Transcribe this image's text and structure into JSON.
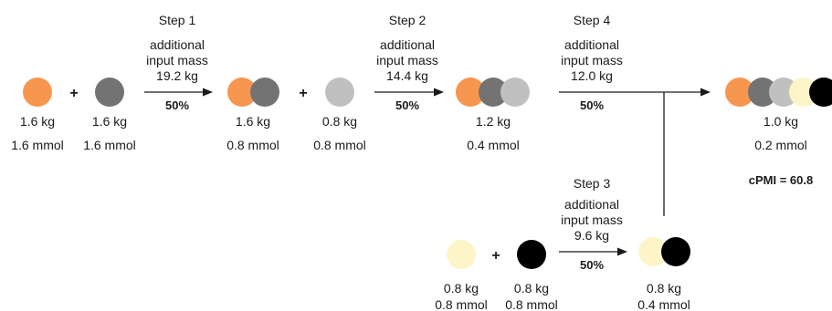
{
  "colors": {
    "orange": "#F7964F",
    "dark_gray": "#737373",
    "light_gray": "#C0C0C0",
    "cream": "#FDF4C8",
    "black": "#000000"
  },
  "reactants": {
    "a": {
      "mass": "1.6 kg",
      "amount": "1.6 mmol"
    },
    "b": {
      "mass": "1.6 kg",
      "amount": "1.6 mmol"
    },
    "c": {
      "mass": "0.8 kg",
      "amount": "0.8 mmol"
    },
    "d": {
      "mass": "0.8 kg",
      "amount": "0.8 mmol"
    },
    "e": {
      "mass": "0.8 kg",
      "amount": "0.8 mmol"
    }
  },
  "intermediates": {
    "ab": {
      "mass": "1.6 kg",
      "amount": "0.8 mmol"
    },
    "abc": {
      "mass": "1.2 kg",
      "amount": "0.4 mmol"
    },
    "de": {
      "mass": "0.8 kg",
      "amount": "0.4 mmol"
    }
  },
  "product": {
    "mass": "1.0 kg",
    "amount": "0.2 mmol"
  },
  "steps": [
    {
      "title": "Step 1",
      "line1": "additional",
      "line2": "input mass",
      "mass": "19.2 kg",
      "yield": "50%"
    },
    {
      "title": "Step 2",
      "line1": "additional",
      "line2": "input mass",
      "mass": "14.4 kg",
      "yield": "50%"
    },
    {
      "title": "Step 3",
      "line1": "additional",
      "line2": "input mass",
      "mass": "9.6 kg",
      "yield": "50%"
    },
    {
      "title": "Step 4",
      "line1": "additional",
      "line2": "input mass",
      "mass": "12.0 kg",
      "yield": "50%"
    }
  ],
  "plus_sign": "+",
  "cpmi": "cPMI = 60.8"
}
